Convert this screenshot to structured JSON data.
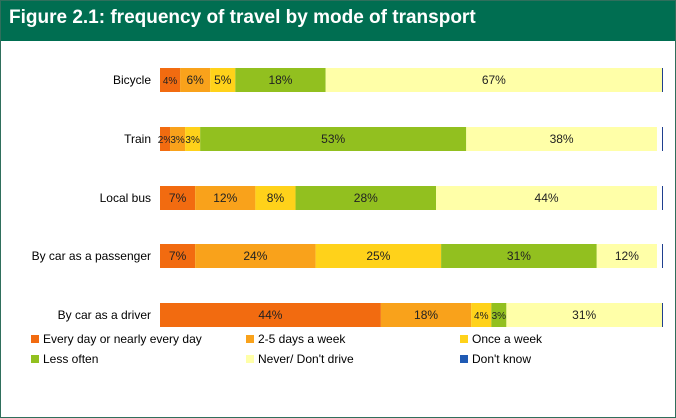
{
  "title": "Figure 2.1: frequency of travel by mode of transport",
  "colors": {
    "header_bg": "#006e51",
    "series": [
      "#f26b10",
      "#f9a21b",
      "#ffd21a",
      "#92c01f",
      "#ffffa8",
      "#1f5ab4"
    ]
  },
  "chart_data": {
    "type": "bar",
    "orientation": "horizontal",
    "stacked": true,
    "title": "Figure 2.1: frequency of travel by mode of transport",
    "xlim": [
      0,
      100
    ],
    "grid": false,
    "legend_position": "bottom",
    "categories": [
      "Bicycle",
      "Train",
      "Local bus",
      "By car as a passenger",
      "By car as a driver"
    ],
    "series": [
      {
        "name": "Every day or nearly every day",
        "values": [
          4,
          2,
          7,
          7,
          44
        ],
        "labels": [
          "4%",
          "2%",
          "7%",
          "7%",
          "44%"
        ]
      },
      {
        "name": "2-5 days a week",
        "values": [
          6,
          3,
          12,
          24,
          18
        ],
        "labels": [
          "6%",
          "3%",
          "12%",
          "24%",
          "18%"
        ]
      },
      {
        "name": "Once a week",
        "values": [
          5,
          3,
          8,
          25,
          4
        ],
        "labels": [
          "5%",
          "3%",
          "8%",
          "25%",
          "4%"
        ]
      },
      {
        "name": "Less often",
        "values": [
          18,
          53,
          28,
          31,
          3
        ],
        "labels": [
          "18%",
          "53%",
          "28%",
          "31%",
          "3%"
        ]
      },
      {
        "name": "Never/ Don't drive",
        "values": [
          67,
          38,
          44,
          12,
          31
        ],
        "labels": [
          "67%",
          "38%",
          "44%",
          "12%",
          "31%"
        ]
      },
      {
        "name": "Don't know",
        "values": [
          0,
          0,
          0,
          0,
          0
        ],
        "labels": [
          "",
          "",
          "",
          "",
          ""
        ]
      }
    ]
  }
}
